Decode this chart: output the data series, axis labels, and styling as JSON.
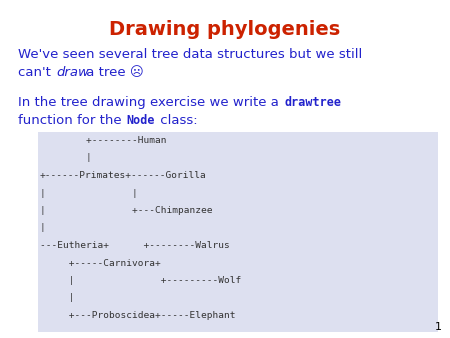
{
  "title": "Drawing phylogenies",
  "title_color": "#cc2200",
  "title_fontsize": 14,
  "body_color": "#2222cc",
  "body_fontsize": 9.5,
  "mono_color": "#2222cc",
  "mono_fontsize": 8.5,
  "bg_color": "#ffffff",
  "box_color": "#dde0f0",
  "slide_number": "1",
  "tree_lines": [
    "        +--------Human",
    "        |",
    "+------Primates+------Gorilla",
    "|               |",
    "|               +---Chimpanzee",
    "|",
    "---Eutheria+      +--------Walrus",
    "     +-----Carnivora+",
    "     |               +---------Wolf",
    "     |",
    "     +---Proboscidea+-----Elephant"
  ]
}
